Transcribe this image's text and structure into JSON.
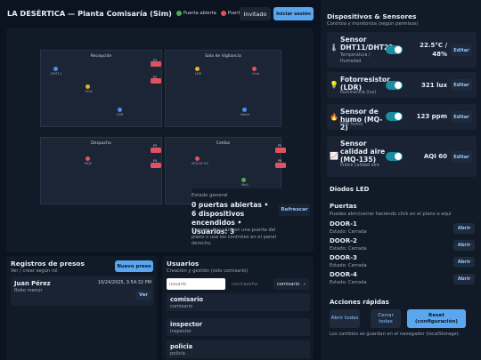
{
  "header": {
    "title": "LA DESÉRTICA — Planta Comisaría (Sim)",
    "legend_open": "Puerta abierta",
    "legend_closed": "Puerta cerrada",
    "guest": "Invitado",
    "login": "Iniciar sesión",
    "color_open": "#4caf50",
    "color_closed": "#e05262"
  },
  "plan": {
    "rooms": {
      "recepcion": "Recepción",
      "vigilancia": "Sala de Vigilancia",
      "despacho": "Despacho",
      "celdas": "Celdas"
    },
    "devices": {
      "d1": "DHT11",
      "d2": "MQ2",
      "d3": "LDR",
      "d4": "LDR",
      "d5": "Cam",
      "d6": "Motor",
      "d7": "MQ2",
      "d8": "MQ135 H2",
      "d9": "Mq3"
    },
    "doors": {
      "p1": "P1",
      "p2": "P2",
      "p3": "P3",
      "p4": "P4",
      "p5": "P5",
      "p6": "P6"
    },
    "state": {
      "label": "Estado general",
      "summary": "0 puertas abiertas • 6 dispositivos encendidos • Usuarios: 3",
      "tip": "Consejo: haz click en una puerta del plano o usa los controles en el panel derecho.",
      "refresh": "Refrescar"
    }
  },
  "presos": {
    "title": "Registros de presos",
    "subtitle": "Ver / crear según rol",
    "new_button": "Nuevo preso",
    "entry": {
      "name": "Juan Pérez",
      "date": "10/24/2025, 3:54:32 PM",
      "crime": "Robo menor",
      "view": "Ver"
    }
  },
  "usuarios": {
    "title": "Usuarios",
    "subtitle": "Creación y gestión (solo comisario)",
    "user_placeholder": "usuario",
    "pass_placeholder": "contraseña",
    "role_value": "comisario",
    "list": [
      {
        "name": "comisario",
        "role": "comisario"
      },
      {
        "name": "inspector",
        "role": "inspector"
      },
      {
        "name": "policia",
        "role": "policia"
      }
    ]
  },
  "sidebar": {
    "title": "Dispositivos & Sensores",
    "subtitle": "Controla y monitoriza (según permisos)",
    "sensors": [
      {
        "icon": "thermometer-icon",
        "glyph": "🌡",
        "name": "Sensor DHT11/DHT22",
        "sub": "Temperatura / Humedad",
        "value": "22.5°C / 48%",
        "edit": "Editar"
      },
      {
        "icon": "bulb-icon",
        "glyph": "💡",
        "name": "Fotorresistor (LDR)",
        "sub": "Iluminancia (lux)",
        "value": "321 lux",
        "edit": "Editar"
      },
      {
        "icon": "fire-icon",
        "glyph": "🔥",
        "name": "Sensor de humo (MQ-2)",
        "sub": "PPM humo",
        "value": "123 ppm",
        "edit": "Editar"
      },
      {
        "icon": "chart-icon",
        "glyph": "📈",
        "name": "Sensor calidad aire (MQ-135)",
        "sub": "Índice calidad aire",
        "value": "AQI 60",
        "edit": "Editar"
      }
    ],
    "leds_title": "Diodos LED",
    "doors_title": "Puertas",
    "doors_sub": "Puedes abrir/cerrar haciendo click en el plano o aquí",
    "doors": [
      {
        "name": "DOOR-1",
        "status": "Estado: Cerrada",
        "action": "Abrir"
      },
      {
        "name": "DOOR-2",
        "status": "Estado: Cerrada",
        "action": "Abrir"
      },
      {
        "name": "DOOR-3",
        "status": "Estado: Cerrada",
        "action": "Abrir"
      },
      {
        "name": "DOOR-4",
        "status": "Estado: Cerrada",
        "action": "Abrir"
      }
    ],
    "quick_title": "Acciones rápidas",
    "quick": [
      "Abrir todas",
      "Cerrar todas",
      "Reset (configuración)"
    ],
    "footnote": "Los cambios se guardan en el navegador (localStorage)."
  }
}
